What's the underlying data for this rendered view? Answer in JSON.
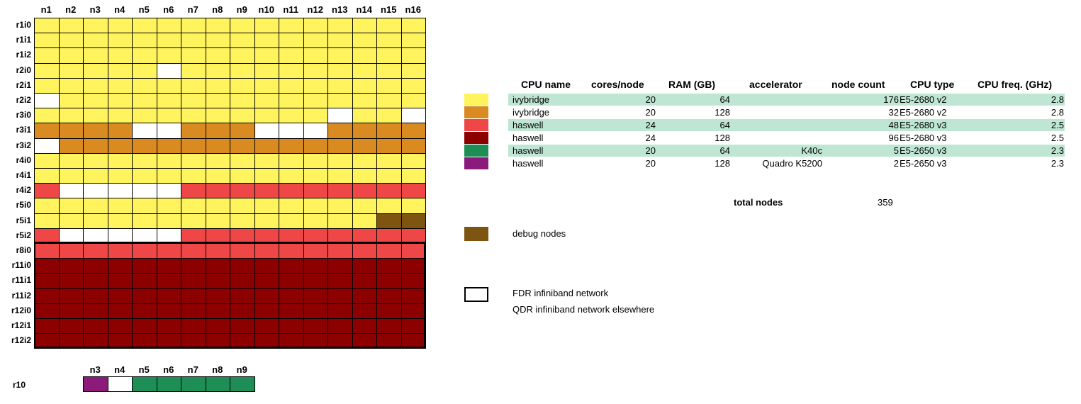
{
  "colors": {
    "y": "#fff35e",
    "o": "#d98a20",
    "r": "#ef4747",
    "d": "#8c0000",
    "g": "#1f8e56",
    "p": "#8b1a7a",
    "b": "#7d5510",
    "w": "#ffffff"
  },
  "columns": [
    "n1",
    "n2",
    "n3",
    "n4",
    "n5",
    "n6",
    "n7",
    "n8",
    "n9",
    "n10",
    "n11",
    "n12",
    "n13",
    "n14",
    "n15",
    "n16"
  ],
  "rows": [
    {
      "label": "r1i0",
      "cells": "yyyyyyyyyyyyyyyy"
    },
    {
      "label": "r1i1",
      "cells": "yyyyyyyyyyyyyyyy"
    },
    {
      "label": "r1i2",
      "cells": "yyyyyyyyyyyyyyyy"
    },
    {
      "label": "r2i0",
      "cells": "yyyyywyyyyyyyyyy"
    },
    {
      "label": "r2i1",
      "cells": "yyyyyyyyyyyyyyyy"
    },
    {
      "label": "r2i2",
      "cells": "wyyyyyyyyyyyyyyy"
    },
    {
      "label": "r3i0",
      "cells": "yyyyyyyyyyyywyyw"
    },
    {
      "label": "r3i1",
      "cells": "oooowwooowwwoooo"
    },
    {
      "label": "r3i2",
      "cells": "wooooooooooooooo"
    },
    {
      "label": "r4i0",
      "cells": "yyyyyyyyyyyyyyyy"
    },
    {
      "label": "r4i1",
      "cells": "yyyyyyyyyyyyyyyy"
    },
    {
      "label": "r4i2",
      "cells": "rwwwwwrrrrrrrrrr"
    },
    {
      "label": "r5i0",
      "cells": "yyyyyyyyyyyyyyyy"
    },
    {
      "label": "r5i1",
      "cells": "yyyyyyyyyyyyyybb"
    },
    {
      "label": "r5i2",
      "cells": "rwwwwwrrrrrrrrrr"
    },
    {
      "label": "r8i0",
      "cells": "rrrrrrrrrrrrrrrr"
    },
    {
      "label": "r11i0",
      "cells": "dddddddddddddddd"
    },
    {
      "label": "r11i1",
      "cells": "dddddddddddddddd"
    },
    {
      "label": "r11i2",
      "cells": "dddddddddddddddd"
    },
    {
      "label": "r12i0",
      "cells": "dddddddddddddddd"
    },
    {
      "label": "r12i1",
      "cells": "dddddddddddddddd"
    },
    {
      "label": "r12i2",
      "cells": "dddddddddddddddd"
    }
  ],
  "r10": {
    "label": "r10",
    "columns": [
      "n3",
      "n4",
      "n5",
      "n6",
      "n7",
      "n8",
      "n9"
    ],
    "cells": "pwggggg"
  },
  "table": {
    "headers": {
      "cpu_name": "CPU name",
      "cores": "cores/node",
      "ram": "RAM (GB)",
      "accelerator": "accelerator",
      "node_count": "node count",
      "cpu_type": "CPU type",
      "cpu_freq": "CPU freq. (GHz)"
    },
    "rows": [
      {
        "color": "y",
        "cpu_name": "ivybridge",
        "cores": "20",
        "ram": "64",
        "accelerator": "",
        "node_count": "176",
        "cpu_type": "E5-2680 v2",
        "cpu_freq": "2.8"
      },
      {
        "color": "o",
        "cpu_name": "ivybridge",
        "cores": "20",
        "ram": "128",
        "accelerator": "",
        "node_count": "32",
        "cpu_type": "E5-2680 v2",
        "cpu_freq": "2.8"
      },
      {
        "color": "r",
        "cpu_name": "haswell",
        "cores": "24",
        "ram": "64",
        "accelerator": "",
        "node_count": "48",
        "cpu_type": "E5-2680 v3",
        "cpu_freq": "2.5"
      },
      {
        "color": "d",
        "cpu_name": "haswell",
        "cores": "24",
        "ram": "128",
        "accelerator": "",
        "node_count": "96",
        "cpu_type": "E5-2680 v3",
        "cpu_freq": "2.5"
      },
      {
        "color": "g",
        "cpu_name": "haswell",
        "cores": "20",
        "ram": "64",
        "accelerator": "K40c",
        "node_count": "5",
        "cpu_type": "E5-2650 v3",
        "cpu_freq": "2.3"
      },
      {
        "color": "p",
        "cpu_name": "haswell",
        "cores": "20",
        "ram": "128",
        "accelerator": "Quadro K5200",
        "node_count": "2",
        "cpu_type": "E5-2650 v3",
        "cpu_freq": "2.3"
      }
    ],
    "band_color": "#bfe6d3",
    "total_label": "total nodes",
    "total_value": "359"
  },
  "legend": {
    "debug_label": "debug nodes",
    "fdr_label": "FDR infiniband network",
    "qdr_label": "QDR infiniband network elsewhere"
  }
}
